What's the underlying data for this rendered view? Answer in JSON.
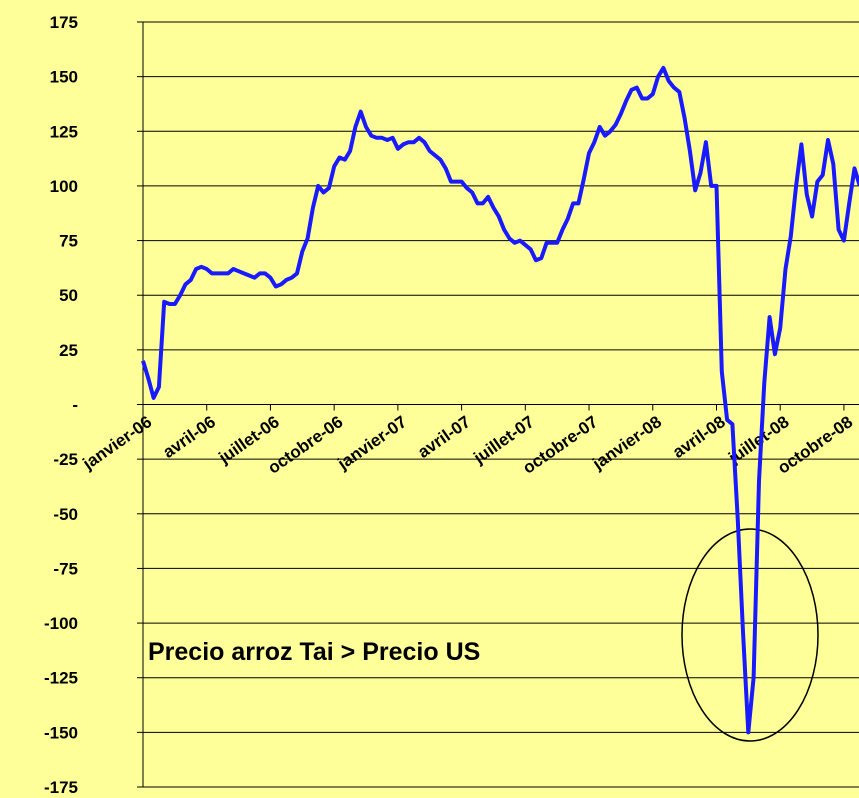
{
  "chart_data": {
    "type": "line",
    "annotations": [
      "Precio arroz Tai > Precio US"
    ],
    "categories": [
      "janvier-06",
      null,
      null,
      null,
      null,
      null,
      null,
      null,
      null,
      null,
      null,
      null,
      "avril-06",
      null,
      null,
      null,
      null,
      null,
      null,
      null,
      null,
      null,
      null,
      null,
      "juillet-06",
      null,
      null,
      null,
      null,
      null,
      null,
      null,
      null,
      null,
      null,
      null,
      "octobre-06",
      null,
      null,
      null,
      null,
      null,
      null,
      null,
      null,
      null,
      null,
      null,
      "janvier-07",
      null,
      null,
      null,
      null,
      null,
      null,
      null,
      null,
      null,
      null,
      null,
      "avril-07",
      null,
      null,
      null,
      null,
      null,
      null,
      null,
      null,
      null,
      null,
      null,
      "juillet-07",
      null,
      null,
      null,
      null,
      null,
      null,
      null,
      null,
      null,
      null,
      null,
      "octobre-07",
      null,
      null,
      null,
      null,
      null,
      null,
      null,
      null,
      null,
      null,
      null,
      "janvier-08",
      null,
      null,
      null,
      null,
      null,
      null,
      null,
      null,
      null,
      null,
      null,
      "avril-08",
      null,
      null,
      null,
      null,
      null,
      null,
      null,
      null,
      null,
      null,
      null,
      "juillet-08",
      null,
      null,
      null,
      null,
      null,
      null,
      null,
      null,
      null,
      null,
      null,
      "octobre-08",
      null,
      null,
      null
    ],
    "series": [
      {
        "color": "#1a1aff",
        "values": [
          20,
          12,
          3,
          8,
          47,
          46,
          46,
          50,
          55,
          57,
          62,
          63,
          62,
          60,
          60,
          60,
          60,
          62,
          61,
          60,
          59,
          58,
          60,
          60,
          58,
          54,
          55,
          57,
          58,
          60,
          70,
          76,
          90,
          100,
          97,
          99,
          109,
          113,
          112,
          116,
          127,
          134,
          127,
          123,
          122,
          122,
          121,
          122,
          117,
          119,
          120,
          120,
          122,
          120,
          116,
          114,
          112,
          108,
          102,
          102,
          102,
          99,
          97,
          92,
          92,
          95,
          90,
          86,
          80,
          76,
          74,
          75,
          73,
          71,
          66,
          67,
          74,
          74,
          74,
          80,
          85,
          92,
          92,
          103,
          115,
          120,
          127,
          123,
          125,
          128,
          133,
          139,
          144,
          145,
          140,
          140,
          142,
          150,
          154,
          148,
          145,
          143,
          131,
          116,
          98,
          106,
          120,
          100,
          100,
          15,
          -7,
          -9,
          -52,
          -104,
          -150,
          -125,
          -35,
          10,
          40,
          23,
          35,
          62,
          77,
          100,
          119,
          96,
          86,
          102,
          105,
          121,
          110,
          80,
          75,
          92,
          108,
          100
        ]
      }
    ],
    "ylim": [
      -175,
      175
    ],
    "yticks": [
      -175,
      -150,
      -125,
      -100,
      -75,
      -50,
      -25,
      {
        "value": 0,
        "label": "-"
      },
      25,
      50,
      75,
      100,
      125,
      150,
      175
    ],
    "grid": true
  }
}
